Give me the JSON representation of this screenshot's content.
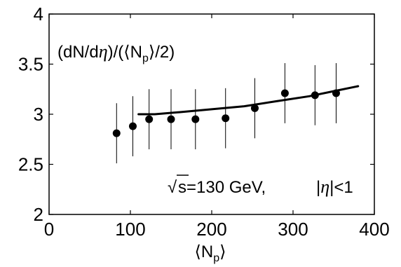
{
  "chart_data": {
    "type": "scatter",
    "title": "",
    "xlabel": {
      "left_bracket": "⟨",
      "base": "N",
      "subscript": "p",
      "right_bracket": "⟩"
    },
    "ylabel": "",
    "xlim": [
      0,
      400
    ],
    "ylim": [
      2,
      4
    ],
    "x_ticks": [
      0,
      100,
      200,
      300,
      400
    ],
    "y_ticks": [
      2,
      2.5,
      3,
      3.5,
      4
    ],
    "x_tick_labels": [
      "0",
      "100",
      "200",
      "300",
      "400"
    ],
    "y_tick_labels": [
      "2",
      "2.5",
      "3",
      "3.5",
      "4"
    ],
    "grid": false,
    "series": [
      {
        "kind": "points-with-errorbars",
        "marker": "filled-circle",
        "color": "#000000",
        "points": [
          {
            "x": 83,
            "y": 2.81,
            "err": 0.3
          },
          {
            "x": 103,
            "y": 2.88,
            "err": 0.3
          },
          {
            "x": 123,
            "y": 2.95,
            "err": 0.3
          },
          {
            "x": 150,
            "y": 2.95,
            "err": 0.3
          },
          {
            "x": 180,
            "y": 2.95,
            "err": 0.3
          },
          {
            "x": 217,
            "y": 2.96,
            "err": 0.3
          },
          {
            "x": 253,
            "y": 3.06,
            "err": 0.3
          },
          {
            "x": 290,
            "y": 3.21,
            "err": 0.3
          },
          {
            "x": 327,
            "y": 3.19,
            "err": 0.3
          },
          {
            "x": 353,
            "y": 3.21,
            "err": 0.3
          }
        ]
      },
      {
        "kind": "line",
        "color": "#000000",
        "x": [
          110,
          130,
          160,
          200,
          240,
          280,
          320,
          350,
          380
        ],
        "y": [
          3.0,
          3.0,
          3.02,
          3.05,
          3.08,
          3.13,
          3.18,
          3.23,
          3.28
        ]
      }
    ],
    "annotations": {
      "y_quantity": {
        "open": "(dN/d",
        "eta": "η",
        "middle": ")/(⟨N",
        "subscript": "p",
        "close": "⟩/2)"
      },
      "condition": {
        "sqrt": "√",
        "s": "s",
        "energy": "=130 GeV,",
        "abs_open": "|",
        "eta": "η",
        "abs_close": "|<1"
      }
    }
  }
}
